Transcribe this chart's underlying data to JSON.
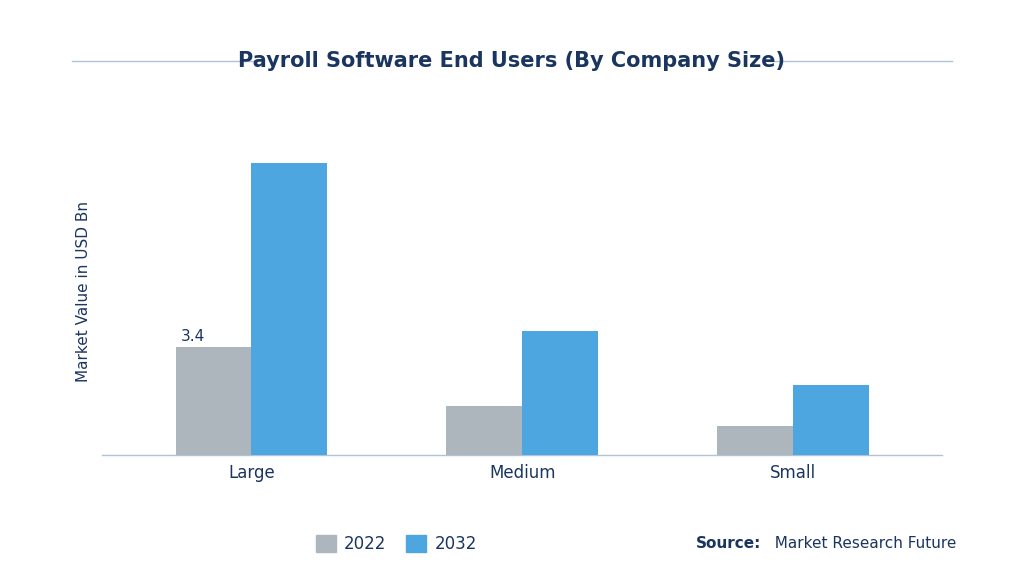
{
  "title": "Payroll Software End Users (By Company Size)",
  "categories": [
    "Large",
    "Medium",
    "Small"
  ],
  "values_2022": [
    3.4,
    1.55,
    0.9
  ],
  "values_2032": [
    9.2,
    3.9,
    2.2
  ],
  "color_2022": "#adb5bd",
  "color_2032": "#4da6df",
  "ylabel": "Market Value in USD Bn",
  "annotation_label": "3.4",
  "legend_labels": [
    "2022",
    "2032"
  ],
  "bar_width": 0.28,
  "background_color": "#ffffff",
  "title_color": "#1a3560",
  "axis_label_color": "#1a3560",
  "tick_color": "#1a3560",
  "title_fontsize": 15,
  "ylabel_fontsize": 11,
  "tick_fontsize": 12,
  "legend_fontsize": 12,
  "source_fontsize": 11,
  "annotation_fontsize": 11,
  "line_color": "#b0c4d8"
}
